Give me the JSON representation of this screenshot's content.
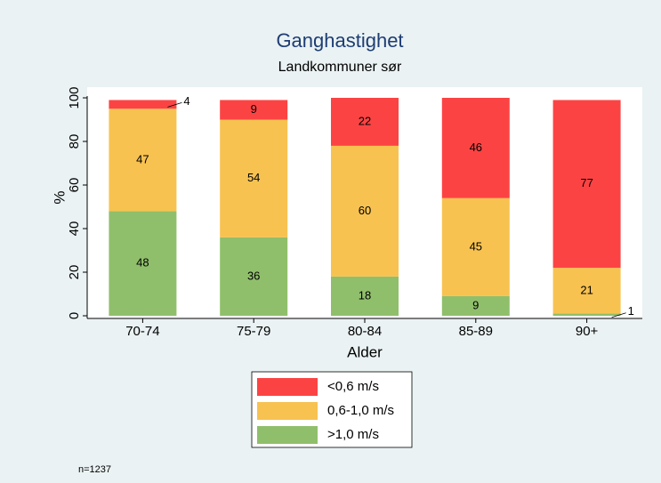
{
  "chart_data": {
    "type": "stacked_bar",
    "title": "Ganghastighet",
    "subtitle": "Landkommuner sør",
    "x_label": "Alder",
    "y_label": "%",
    "categories": [
      "70-74",
      "75-79",
      "80-84",
      "85-89",
      "90+"
    ],
    "series": [
      {
        "name": ">1,0 m/s",
        "color": "#90bf6b",
        "values": [
          48,
          36,
          18,
          9,
          1
        ]
      },
      {
        "name": "0,6-1,0 m/s",
        "color": "#f8c251",
        "values": [
          47,
          54,
          60,
          45,
          21
        ]
      },
      {
        "name": "<0,6 m/s",
        "color": "#fc4343",
        "values": [
          4,
          9,
          22,
          46,
          77
        ]
      }
    ],
    "ylim": [
      0,
      100
    ],
    "yticks": [
      0,
      20,
      40,
      60,
      80,
      100
    ],
    "grid": false,
    "legend": "bottom",
    "note": "n=1237"
  }
}
